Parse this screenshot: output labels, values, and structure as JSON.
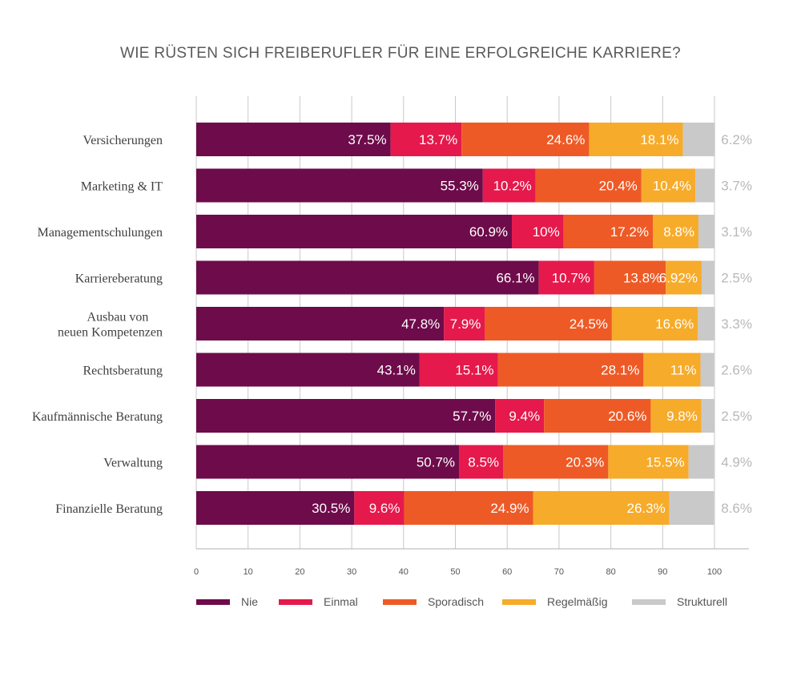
{
  "chart_data": {
    "type": "bar",
    "orientation": "horizontal",
    "stacked": true,
    "title": "WIE RÜSTEN SICH FREIBERUFLER FÜR EINE ERFOLGREICHE KARRIERE?",
    "categories": [
      "Versicherungen",
      "Marketing & IT",
      "Managementschulungen",
      "Karriereberatung",
      "Ausbau von\nneuen Kompetenzen",
      "Rechtsberatung",
      "Kaufmännische Beratung",
      "Verwaltung",
      "Finanzielle Beratung"
    ],
    "series": [
      {
        "name": "Nie",
        "color": "#6e0b4a",
        "values": [
          37.5,
          55.3,
          60.9,
          66.1,
          47.8,
          43.1,
          57.7,
          50.7,
          30.5
        ],
        "labels": [
          "37.5%",
          "55.3%",
          "60.9%",
          "66.1%",
          "47.8%",
          "43.1%",
          "57.7%",
          "50.7%",
          "30.5%"
        ]
      },
      {
        "name": "Einmal",
        "color": "#e5194b",
        "values": [
          13.7,
          10.2,
          10,
          10.7,
          7.9,
          15.1,
          9.4,
          8.5,
          9.6
        ],
        "labels": [
          "13.7%",
          "10.2%",
          "10%",
          "10.7%",
          "7.9%",
          "15.1%",
          "9.4%",
          "8.5%",
          "9.6%"
        ]
      },
      {
        "name": "Sporadisch",
        "color": "#ee5a26",
        "values": [
          24.6,
          20.4,
          17.2,
          13.8,
          24.5,
          28.1,
          20.6,
          20.3,
          24.9
        ],
        "labels": [
          "24.6%",
          "20.4%",
          "17.2%",
          "13.8%",
          "24.5%",
          "28.1%",
          "20.6%",
          "20.3%",
          "24.9%"
        ]
      },
      {
        "name": "Regelmäßig",
        "color": "#f7ab2a",
        "values": [
          18.1,
          10.4,
          8.8,
          6.92,
          16.6,
          11,
          9.8,
          15.5,
          26.3
        ],
        "labels": [
          "18.1%",
          "10.4%",
          "8.8%",
          "6.92%",
          "16.6%",
          "11%",
          "9.8%",
          "15.5%",
          "26.3%"
        ]
      },
      {
        "name": "Strukturell",
        "color": "#c9c9c9",
        "values": [
          6.2,
          3.7,
          3.1,
          2.5,
          3.3,
          2.6,
          2.5,
          4.9,
          8.6
        ],
        "labels": [
          "6.2%",
          "3.7%",
          "3.1%",
          "2.5%",
          "3.3%",
          "2.6%",
          "2.5%",
          "4.9%",
          "8.6%"
        ]
      }
    ],
    "xlim": [
      0,
      100
    ],
    "xticks": [
      "0",
      "10",
      "20",
      "30",
      "40",
      "50",
      "60",
      "70",
      "80",
      "90",
      "100"
    ],
    "grid": true,
    "legend_position": "bottom",
    "xlabel": "",
    "ylabel": ""
  }
}
